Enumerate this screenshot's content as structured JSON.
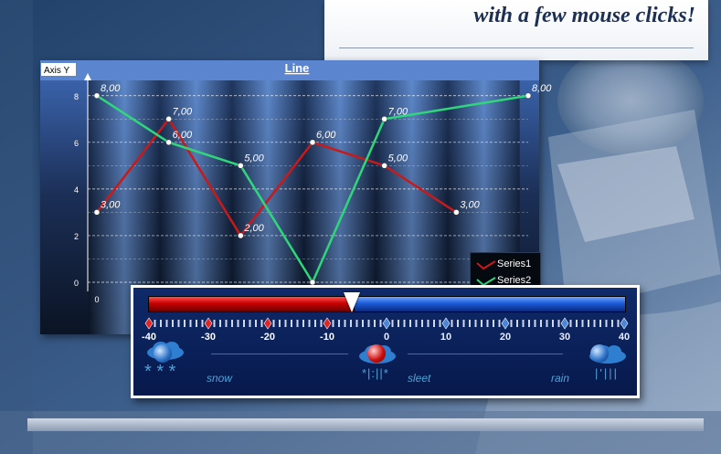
{
  "banner": {
    "text": "with a few mouse clicks!"
  },
  "chart": {
    "title": "Line",
    "y_axis_label": "Axis Y",
    "y_ticks": [
      "0",
      "2",
      "4",
      "6",
      "8"
    ],
    "x_ticks": [
      "0"
    ],
    "legend": [
      "Series1",
      "Series2"
    ],
    "colors": {
      "series1": "#c81a1a",
      "series2": "#2fd77a",
      "bg_dark": "#0b1424",
      "bg_light": "#7aa7e6"
    }
  },
  "chart_data": {
    "type": "line",
    "title": "Line",
    "ylabel": "Axis Y",
    "xlabel": "",
    "ylim": [
      0,
      8.5
    ],
    "x": [
      0,
      1,
      2,
      3,
      4,
      5,
      6
    ],
    "series": [
      {
        "name": "Series1",
        "values": [
          3,
          7,
          2,
          6,
          5,
          3,
          null
        ],
        "labels": [
          "3,00",
          "7,00",
          "2,00",
          "6,00",
          "5,00",
          "3,00",
          ""
        ]
      },
      {
        "name": "Series2",
        "values": [
          8,
          6,
          5,
          0,
          7,
          null,
          8
        ],
        "labels": [
          "8,00",
          "6,00",
          "5,00",
          "",
          "7,00",
          "",
          "8,00"
        ]
      }
    ],
    "grid": true,
    "legend_position": "bottom-right"
  },
  "slider": {
    "value": -10,
    "min": -40,
    "max": 40,
    "tick_labels": [
      "-40",
      "-30",
      "-20",
      "-10",
      "0",
      "10",
      "20",
      "30",
      "40"
    ],
    "labels": {
      "snow": "snow",
      "sleet": "sleet",
      "rain": "rain"
    },
    "active_range": "sleet"
  }
}
